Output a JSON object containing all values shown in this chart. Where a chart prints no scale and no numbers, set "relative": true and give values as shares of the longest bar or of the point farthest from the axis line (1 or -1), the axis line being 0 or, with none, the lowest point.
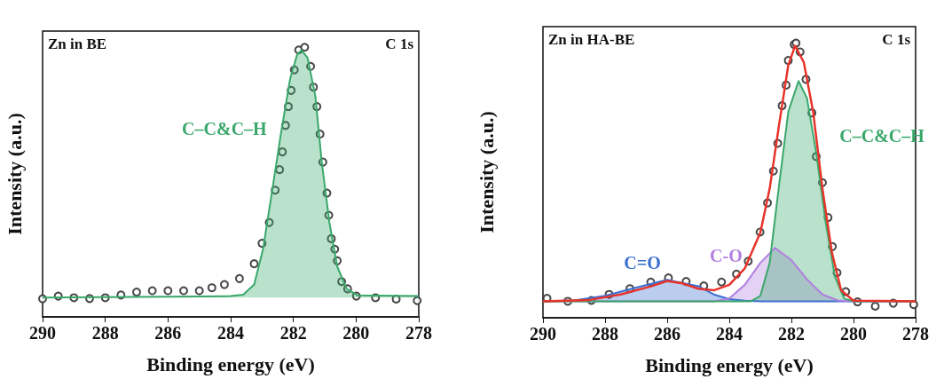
{
  "chart_data": [
    {
      "type": "line",
      "title": "Zn in BE",
      "annotations": [
        "C 1s"
      ],
      "xlabel": "Binding energy (eV)",
      "ylabel": "Intensity (a.u.)",
      "relative": true,
      "legend": false,
      "xlim": [
        290,
        278
      ],
      "xticks": [
        290,
        288,
        286,
        284,
        282,
        280,
        278
      ],
      "series": [
        {
          "name": "C–C&C–H",
          "type": "area",
          "color": "#3aa86b",
          "x": [
            290,
            284,
            283.6,
            283.25,
            282.97,
            282.7,
            282.4,
            282.1,
            281.88,
            281.74,
            281.55,
            281.3,
            281.1,
            280.85,
            280.6,
            280.3,
            279.96,
            278
          ],
          "values": [
            0.072,
            0.077,
            0.082,
            0.12,
            0.25,
            0.45,
            0.678,
            0.885,
            0.973,
            0.989,
            0.962,
            0.82,
            0.58,
            0.35,
            0.186,
            0.104,
            0.08,
            0.077
          ]
        },
        {
          "type": "scatter",
          "color": "#333333",
          "x": [
            290,
            289.5,
            289,
            288.5,
            288,
            287.5,
            287,
            286.5,
            286,
            285.5,
            285,
            284.6,
            284.2,
            283.72,
            283.25,
            283.0,
            282.77,
            282.58,
            282.44,
            282.35,
            282.25,
            282.16,
            282.07,
            281.97,
            281.83,
            281.64,
            281.45,
            281.36,
            281.25,
            281.15,
            281.06,
            280.93,
            280.87,
            280.79,
            280.68,
            280.6,
            280.46,
            280.27,
            279.99,
            279.38,
            278.72,
            278.05
          ],
          "values": [
            0.067,
            0.077,
            0.071,
            0.068,
            0.071,
            0.081,
            0.092,
            0.097,
            0.097,
            0.097,
            0.097,
            0.108,
            0.12,
            0.142,
            0.197,
            0.273,
            0.35,
            0.47,
            0.546,
            0.612,
            0.71,
            0.78,
            0.84,
            0.916,
            0.99,
            1,
            0.929,
            0.852,
            0.78,
            0.678,
            0.574,
            0.459,
            0.377,
            0.29,
            0.251,
            0.208,
            0.131,
            0.104,
            0.077,
            0.071,
            0.066,
            0.06
          ]
        }
      ]
    },
    {
      "type": "line",
      "title": "Zn in HA-BE",
      "annotations": [
        "C 1s"
      ],
      "xlabel": "Binding energy (eV)",
      "ylabel": "Intensity (a.u.)",
      "relative": true,
      "legend": false,
      "xlim": [
        290,
        278
      ],
      "xticks": [
        290,
        288,
        286,
        284,
        282,
        280,
        278
      ],
      "series": [
        {
          "name": "C=O",
          "type": "area",
          "color": "#3a6fd0",
          "x": [
            290,
            289,
            288,
            287,
            286,
            285,
            284.5,
            284,
            283.5,
            283,
            278
          ],
          "values": [
            0.06,
            0.063,
            0.08,
            0.11,
            0.138,
            0.115,
            0.085,
            0.068,
            0.062,
            0.06,
            0.06
          ]
        },
        {
          "name": "C-O",
          "type": "area",
          "color": "#b07fe0",
          "x": [
            290,
            284.5,
            284,
            283.5,
            283,
            282.53,
            282,
            281.5,
            281,
            280.5,
            280,
            278
          ],
          "values": [
            0.06,
            0.06,
            0.07,
            0.12,
            0.2,
            0.254,
            0.21,
            0.14,
            0.085,
            0.063,
            0.06,
            0.06
          ]
        },
        {
          "name": "C–C&C–H",
          "type": "area",
          "color": "#3aa86b",
          "x": [
            290,
            283.3,
            283,
            282.7,
            282.4,
            282.1,
            281.77,
            281.5,
            281.2,
            280.9,
            280.6,
            280.3,
            280,
            278
          ],
          "values": [
            0.06,
            0.06,
            0.08,
            0.2,
            0.48,
            0.75,
            0.862,
            0.8,
            0.6,
            0.35,
            0.15,
            0.07,
            0.06,
            0.06
          ]
        },
        {
          "type": "line",
          "color": "#e8332a",
          "x": [
            290,
            288.5,
            287.5,
            286.5,
            286,
            285.5,
            285,
            284.5,
            284,
            283.5,
            283,
            282.7,
            282.4,
            282.1,
            281.88,
            281.6,
            281.3,
            281,
            280.7,
            280.4,
            280,
            278
          ],
          "values": [
            0.06,
            0.065,
            0.085,
            0.115,
            0.134,
            0.125,
            0.106,
            0.1,
            0.12,
            0.18,
            0.31,
            0.47,
            0.7,
            0.92,
            0.99,
            0.93,
            0.75,
            0.47,
            0.24,
            0.1,
            0.062,
            0.06
          ]
        },
        {
          "type": "scatter",
          "color": "#333333",
          "x": [
            289.87,
            289.2,
            288.44,
            287.87,
            287.2,
            286.53,
            285.96,
            285.39,
            284.82,
            284.25,
            283.77,
            283.39,
            283.01,
            282.77,
            282.58,
            282.44,
            282.3,
            282.17,
            282.1,
            281.91,
            281.85,
            281.72,
            281.53,
            281.34,
            281.2,
            281.0,
            280.82,
            280.68,
            280.53,
            280.25,
            279.87,
            279.3,
            278.72,
            278.06
          ],
          "values": [
            0.071,
            0.06,
            0.063,
            0.085,
            0.106,
            0.13,
            0.145,
            0.132,
            0.116,
            0.13,
            0.159,
            0.206,
            0.312,
            0.418,
            0.534,
            0.635,
            0.772,
            0.847,
            0.937,
            0.995,
            1,
            0.968,
            0.868,
            0.746,
            0.587,
            0.492,
            0.365,
            0.259,
            0.164,
            0.095,
            0.058,
            0.042,
            0.053,
            0.048
          ]
        }
      ]
    }
  ]
}
